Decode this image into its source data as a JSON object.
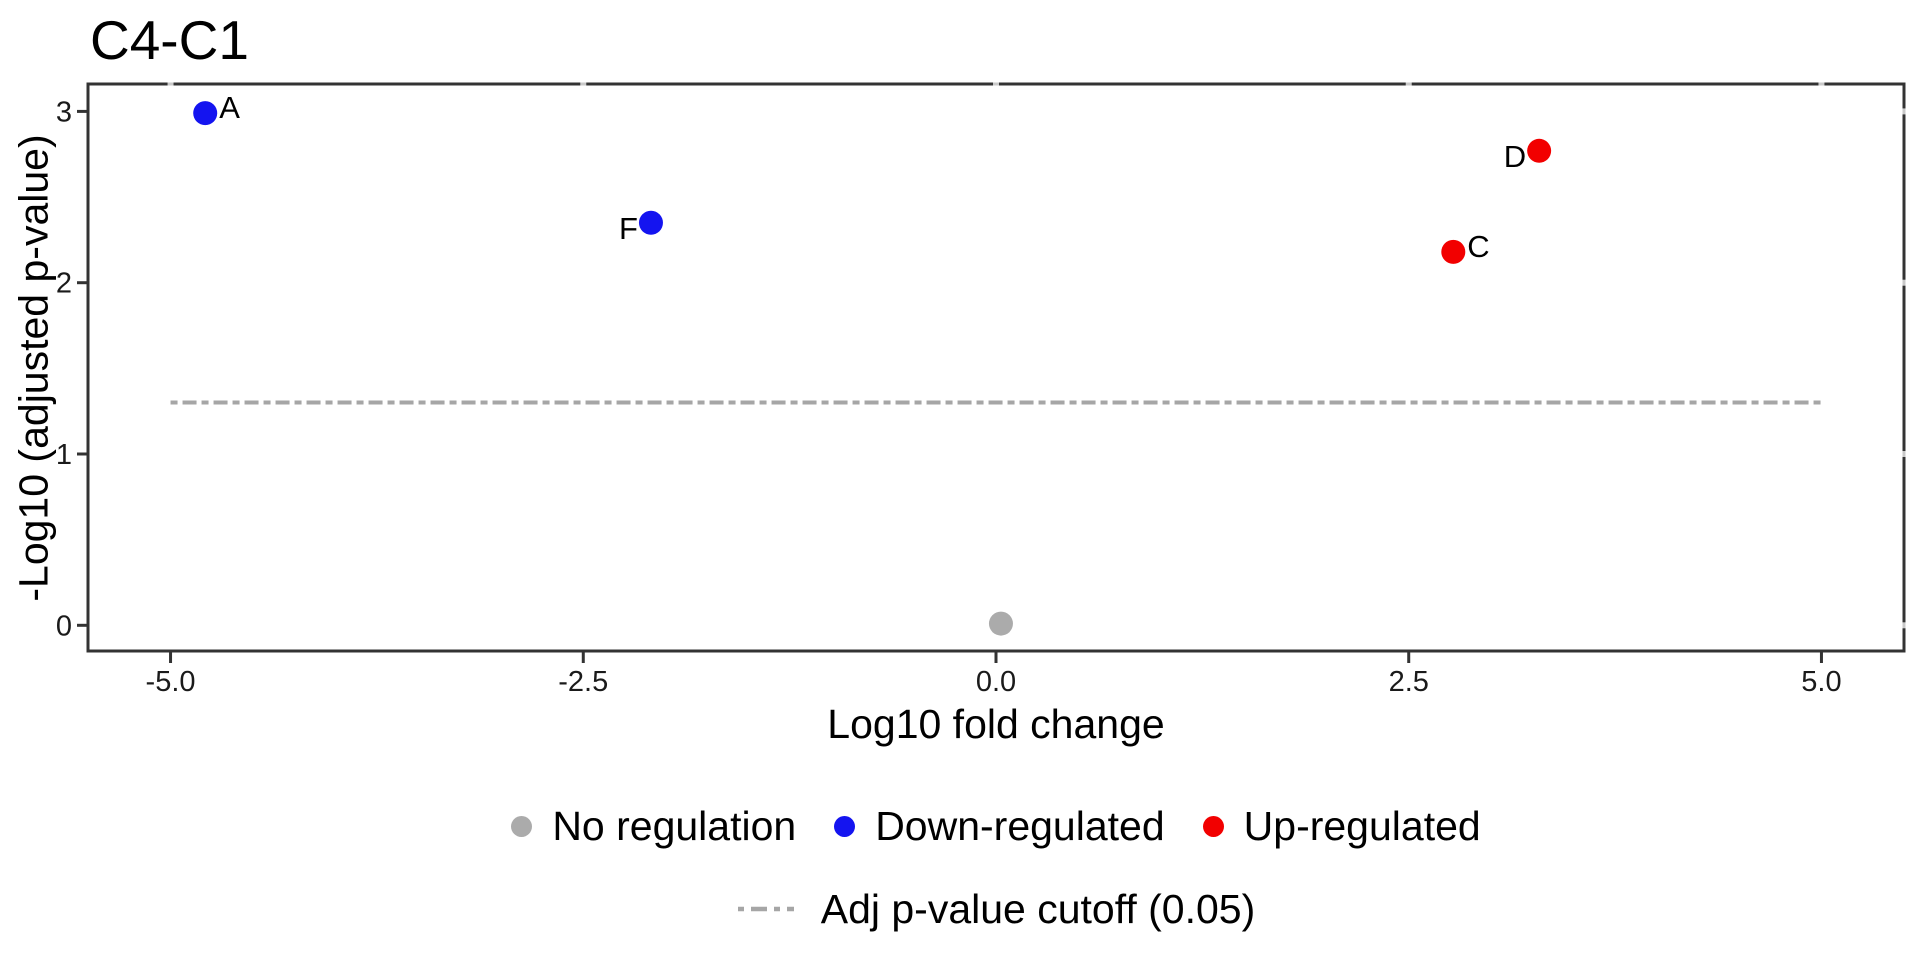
{
  "title": "C4-C1",
  "chart_data": {
    "type": "scatter",
    "title": "C4-C1",
    "xlabel": "Log10 fold change",
    "ylabel": "-Log10 (adjusted p-value)",
    "xlim": [
      -5.5,
      5.5
    ],
    "ylim": [
      -0.15,
      3.16
    ],
    "x_tick_values": [
      -5.0,
      -2.5,
      0.0,
      2.5,
      5.0
    ],
    "x_tick_labels": [
      "-5.0",
      "-2.5",
      "0.0",
      "2.5",
      "5.0"
    ],
    "y_tick_values": [
      0,
      1,
      2,
      3
    ],
    "y_tick_labels": [
      "0",
      "1",
      "2",
      "3"
    ],
    "grid": false,
    "legend_position": "bottom",
    "points": [
      {
        "label": "A",
        "x": -4.79,
        "y": 2.99,
        "group": "Down-regulated",
        "color": "#1414f0",
        "label_side": "right"
      },
      {
        "label": "F",
        "x": -2.09,
        "y": 2.35,
        "group": "Down-regulated",
        "color": "#1414f0",
        "label_side": "left-low"
      },
      {
        "label": "D",
        "x": 3.29,
        "y": 2.77,
        "group": "Up-regulated",
        "color": "#f20000",
        "label_side": "left-low"
      },
      {
        "label": "C",
        "x": 2.77,
        "y": 2.18,
        "group": "Up-regulated",
        "color": "#f20000",
        "label_side": "right"
      },
      {
        "label": "",
        "x": 0.03,
        "y": 0.01,
        "group": "No regulation",
        "color": "#ababab",
        "label_side": "none"
      }
    ],
    "cutoff_line": {
      "y": 1.301,
      "x_start": -5.0,
      "x_end": 5.0,
      "style": "dash-dot",
      "color": "#a6a6a6",
      "label": "Adj p-value cutoff (0.05)"
    }
  },
  "legend_groups": {
    "items": [
      {
        "label": "No regulation",
        "color": "#ababab"
      },
      {
        "label": "Down-regulated",
        "color": "#1414f0"
      },
      {
        "label": "Up-regulated",
        "color": "#f20000"
      }
    ]
  },
  "legend_cutoff": {
    "label": "Adj p-value cutoff (0.05)",
    "color": "#a6a6a6"
  },
  "colors": {
    "background": "#ffffff",
    "panel_border": "#333333",
    "tick": "#333333",
    "tick_label": "#1a1a1a",
    "text": "#000000",
    "border_notch": "#c9c9c9"
  }
}
